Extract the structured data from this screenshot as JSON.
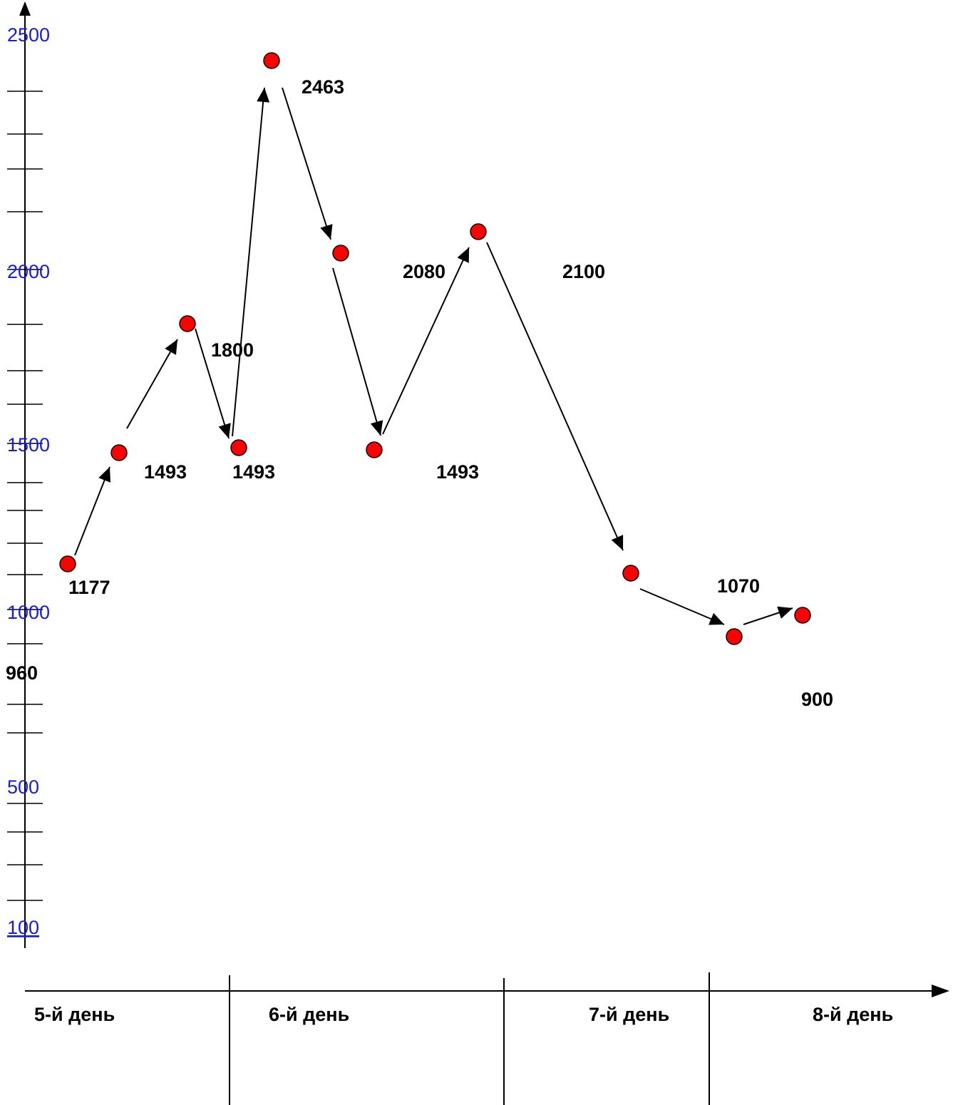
{
  "chart_data": {
    "type": "line",
    "y_tick_labels": [
      "2500",
      "2000",
      "1500",
      "1000",
      "500",
      "100"
    ],
    "x_categories": [
      "5-й день",
      "6-й день",
      "7-й день",
      "8-й день"
    ],
    "points": [
      {
        "value": 1177,
        "label": "1177"
      },
      {
        "value": 1493,
        "label": "1493"
      },
      {
        "value": 1800,
        "label": "1800"
      },
      {
        "value": 1493,
        "label": "1493"
      },
      {
        "value": 2463,
        "label": "2463"
      },
      {
        "value": 2080,
        "label": "2080"
      },
      {
        "value": 1493,
        "label": "1493"
      },
      {
        "value": 2100,
        "label": "2100"
      },
      {
        "value": 1070,
        "label": "1070"
      },
      {
        "value": 960,
        "label": "960"
      },
      {
        "value": 900,
        "label": "900"
      }
    ],
    "marker_color": "#ff0000",
    "arrow_color": "#000000",
    "tick_color": "#1a1ae6"
  }
}
